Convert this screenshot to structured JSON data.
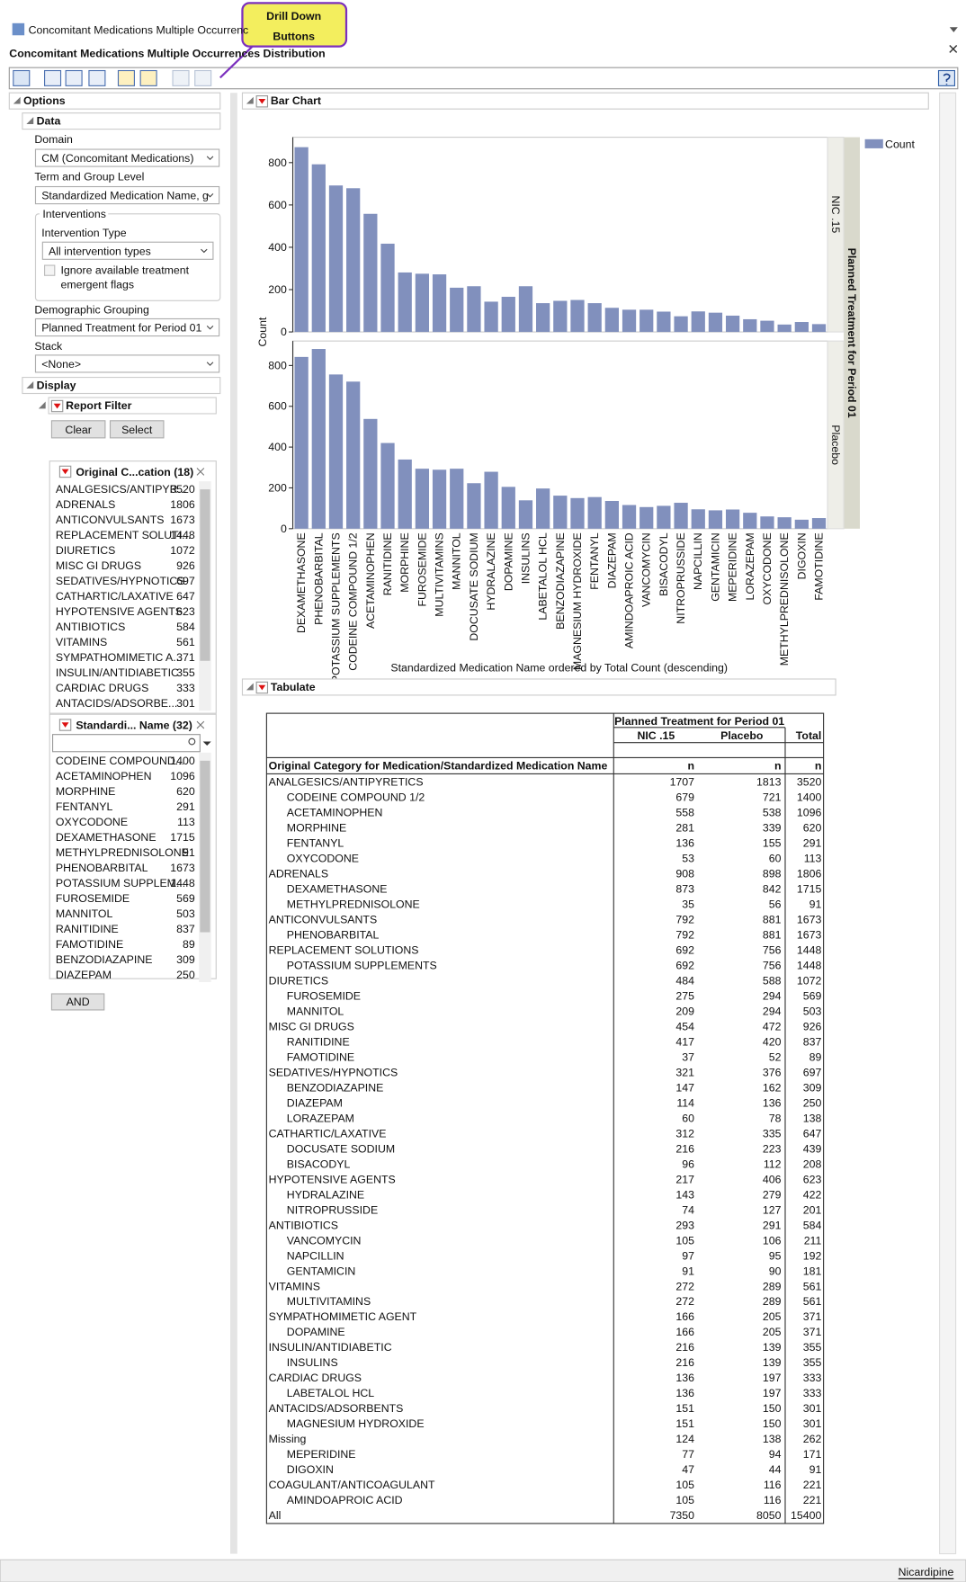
{
  "window_title": "Concomitant Medications Multiple Occurrenc",
  "title": "Concomitant Medications Multiple Occurrences Distribution",
  "annotation": [
    "Drill Down",
    "Buttons"
  ],
  "options": {
    "header": "Options",
    "data": {
      "header": "Data",
      "domain_label": "Domain",
      "domain": "CM (Concomitant Medications)",
      "term_label": "Term and Group Level",
      "term": "Standardized Medication Name, g",
      "interventions": {
        "header": "Interventions",
        "type_label": "Intervention Type",
        "type": "All intervention types",
        "ignore_flags": [
          "Ignore available treatment",
          "emergent flags"
        ]
      },
      "demographic_label": "Demographic Grouping",
      "demographic": "Planned Treatment for Period 01",
      "stack_label": "Stack",
      "stack": "<None>"
    },
    "display": {
      "header": "Display",
      "report_filter": "Report Filter",
      "buttons": [
        "Clear",
        "Select"
      ],
      "filters": [
        {
          "title": "Original C...cation (18)",
          "items": [
            {
              "label": "ANALGESICS/ANTIPYR...",
              "count": 3520
            },
            {
              "label": "ADRENALS",
              "count": 1806
            },
            {
              "label": "ANTICONVULSANTS",
              "count": 1673
            },
            {
              "label": "REPLACEMENT SOLUTI...",
              "count": 1448
            },
            {
              "label": "DIURETICS",
              "count": 1072
            },
            {
              "label": "MISC GI DRUGS",
              "count": 926
            },
            {
              "label": "SEDATIVES/HYPNOTICS",
              "count": 697
            },
            {
              "label": "CATHARTIC/LAXATIVE",
              "count": 647
            },
            {
              "label": "HYPOTENSIVE AGENTS",
              "count": 623
            },
            {
              "label": "ANTIBIOTICS",
              "count": 584
            },
            {
              "label": "VITAMINS",
              "count": 561
            },
            {
              "label": "SYMPATHOMIMETIC A...",
              "count": 371
            },
            {
              "label": "INSULIN/ANTIDIABETIC",
              "count": 355
            },
            {
              "label": "CARDIAC DRUGS",
              "count": 333
            },
            {
              "label": "ANTACIDS/ADSORBE...",
              "count": 301
            }
          ]
        },
        {
          "title": "Standardi... Name (32)",
          "items": [
            {
              "label": "CODEINE COMPOUND...",
              "count": 1400
            },
            {
              "label": "ACETAMINOPHEN",
              "count": 1096
            },
            {
              "label": "MORPHINE",
              "count": 620
            },
            {
              "label": "FENTANYL",
              "count": 291
            },
            {
              "label": "OXYCODONE",
              "count": 113
            },
            {
              "label": "DEXAMETHASONE",
              "count": 1715
            },
            {
              "label": "METHYLPREDNISOLONE",
              "count": 91
            },
            {
              "label": "PHENOBARBITAL",
              "count": 1673
            },
            {
              "label": "POTASSIUM SUPPLEM...",
              "count": 1448
            },
            {
              "label": "FUROSEMIDE",
              "count": 569
            },
            {
              "label": "MANNITOL",
              "count": 503
            },
            {
              "label": "RANITIDINE",
              "count": 837
            },
            {
              "label": "FAMOTIDINE",
              "count": 89
            },
            {
              "label": "BENZODIAZAPINE",
              "count": 309
            },
            {
              "label": "DIAZEPAM",
              "count": 250
            }
          ]
        }
      ],
      "combine": "AND"
    }
  },
  "chart_data": {
    "type": "bar",
    "section": "Bar Chart",
    "x_label": "Standardized Medication Name ordered by Total Count (descending)",
    "y_label": "Count",
    "legend": "Count",
    "panel_label": "Planned Treatment for Period 01",
    "categories": [
      "DEXAMETHASONE",
      "PHENOBARBITAL",
      "POTASSIUM SUPPLEMENTS",
      "CODEINE COMPOUND 1/2",
      "ACETAMINOPHEN",
      "RANITIDINE",
      "MORPHINE",
      "FUROSEMIDE",
      "MULTIVITAMINS",
      "MANNITOL",
      "DOCUSATE SODIUM",
      "HYDRALAZINE",
      "DOPAMINE",
      "INSULINS",
      "LABETALOL HCL",
      "BENZODIAZAPINE",
      "MAGNESIUM HYDROXIDE",
      "FENTANYL",
      "DIAZEPAM",
      "AMINDOAPROIC ACID",
      "VANCOMYCIN",
      "BISACODYL",
      "NITROPRUSSIDE",
      "NAPCILLIN",
      "GENTAMICIN",
      "MEPERIDINE",
      "LORAZEPAM",
      "OXYCODONE",
      "METHYLPREDNISOLONE",
      "DIGOXIN",
      "FAMOTIDINE"
    ],
    "series": [
      {
        "name": "NIC .15",
        "color": "#8190bd",
        "values": [
          873,
          792,
          692,
          679,
          558,
          417,
          281,
          275,
          272,
          209,
          216,
          143,
          166,
          216,
          136,
          147,
          151,
          136,
          114,
          105,
          105,
          96,
          74,
          97,
          91,
          77,
          60,
          53,
          35,
          47,
          37
        ]
      },
      {
        "name": "Placebo",
        "color": "#8190bd",
        "values": [
          842,
          881,
          756,
          721,
          538,
          420,
          339,
          294,
          289,
          294,
          223,
          279,
          205,
          139,
          197,
          162,
          150,
          155,
          136,
          116,
          106,
          112,
          127,
          95,
          90,
          94,
          78,
          60,
          56,
          44,
          52
        ]
      }
    ],
    "ylim": [
      0,
      920
    ],
    "yticks": [
      0,
      200,
      400,
      600,
      800
    ]
  },
  "tabulate": {
    "section": "Tabulate",
    "header_group": "Planned Treatment for Period 01",
    "columns": [
      "NIC .15",
      "Placebo",
      "Total"
    ],
    "row_header": "Original Category for Medication/Standardized Medication Name",
    "stats": [
      "n",
      "n",
      "n"
    ],
    "groups": [
      {
        "label": "ANALGESICS/ANTIPYRETICS",
        "values": [
          1707,
          1813,
          3520
        ],
        "items": [
          {
            "label": "CODEINE COMPOUND 1/2",
            "values": [
              679,
              721,
              1400
            ]
          },
          {
            "label": "ACETAMINOPHEN",
            "values": [
              558,
              538,
              1096
            ]
          },
          {
            "label": "MORPHINE",
            "values": [
              281,
              339,
              620
            ]
          },
          {
            "label": "FENTANYL",
            "values": [
              136,
              155,
              291
            ]
          },
          {
            "label": "OXYCODONE",
            "values": [
              53,
              60,
              113
            ]
          }
        ]
      },
      {
        "label": "ADRENALS",
        "values": [
          908,
          898,
          1806
        ],
        "items": [
          {
            "label": "DEXAMETHASONE",
            "values": [
              873,
              842,
              1715
            ]
          },
          {
            "label": "METHYLPREDNISOLONE",
            "values": [
              35,
              56,
              91
            ]
          }
        ]
      },
      {
        "label": "ANTICONVULSANTS",
        "values": [
          792,
          881,
          1673
        ],
        "items": [
          {
            "label": "PHENOBARBITAL",
            "values": [
              792,
              881,
              1673
            ]
          }
        ]
      },
      {
        "label": "REPLACEMENT SOLUTIONS",
        "values": [
          692,
          756,
          1448
        ],
        "items": [
          {
            "label": "POTASSIUM SUPPLEMENTS",
            "values": [
              692,
              756,
              1448
            ]
          }
        ]
      },
      {
        "label": "DIURETICS",
        "values": [
          484,
          588,
          1072
        ],
        "items": [
          {
            "label": "FUROSEMIDE",
            "values": [
              275,
              294,
              569
            ]
          },
          {
            "label": "MANNITOL",
            "values": [
              209,
              294,
              503
            ]
          }
        ]
      },
      {
        "label": "MISC GI DRUGS",
        "values": [
          454,
          472,
          926
        ],
        "items": [
          {
            "label": "RANITIDINE",
            "values": [
              417,
              420,
              837
            ]
          },
          {
            "label": "FAMOTIDINE",
            "values": [
              37,
              52,
              89
            ]
          }
        ]
      },
      {
        "label": "SEDATIVES/HYPNOTICS",
        "values": [
          321,
          376,
          697
        ],
        "items": [
          {
            "label": "BENZODIAZAPINE",
            "values": [
              147,
              162,
              309
            ]
          },
          {
            "label": "DIAZEPAM",
            "values": [
              114,
              136,
              250
            ]
          },
          {
            "label": "LORAZEPAM",
            "values": [
              60,
              78,
              138
            ]
          }
        ]
      },
      {
        "label": "CATHARTIC/LAXATIVE",
        "values": [
          312,
          335,
          647
        ],
        "items": [
          {
            "label": "DOCUSATE SODIUM",
            "values": [
              216,
              223,
              439
            ]
          },
          {
            "label": "BISACODYL",
            "values": [
              96,
              112,
              208
            ]
          }
        ]
      },
      {
        "label": "HYPOTENSIVE AGENTS",
        "values": [
          217,
          406,
          623
        ],
        "items": [
          {
            "label": "HYDRALAZINE",
            "values": [
              143,
              279,
              422
            ]
          },
          {
            "label": "NITROPRUSSIDE",
            "values": [
              74,
              127,
              201
            ]
          }
        ]
      },
      {
        "label": "ANTIBIOTICS",
        "values": [
          293,
          291,
          584
        ],
        "items": [
          {
            "label": "VANCOMYCIN",
            "values": [
              105,
              106,
              211
            ]
          },
          {
            "label": "NAPCILLIN",
            "values": [
              97,
              95,
              192
            ]
          },
          {
            "label": "GENTAMICIN",
            "values": [
              91,
              90,
              181
            ]
          }
        ]
      },
      {
        "label": "VITAMINS",
        "values": [
          272,
          289,
          561
        ],
        "items": [
          {
            "label": "MULTIVITAMINS",
            "values": [
              272,
              289,
              561
            ]
          }
        ]
      },
      {
        "label": "SYMPATHOMIMETIC AGENT",
        "values": [
          166,
          205,
          371
        ],
        "items": [
          {
            "label": "DOPAMINE",
            "values": [
              166,
              205,
              371
            ]
          }
        ]
      },
      {
        "label": "INSULIN/ANTIDIABETIC",
        "values": [
          216,
          139,
          355
        ],
        "items": [
          {
            "label": "INSULINS",
            "values": [
              216,
              139,
              355
            ]
          }
        ]
      },
      {
        "label": "CARDIAC DRUGS",
        "values": [
          136,
          197,
          333
        ],
        "items": [
          {
            "label": "LABETALOL HCL",
            "values": [
              136,
              197,
              333
            ]
          }
        ]
      },
      {
        "label": "ANTACIDS/ADSORBENTS",
        "values": [
          151,
          150,
          301
        ],
        "items": [
          {
            "label": "MAGNESIUM HYDROXIDE",
            "values": [
              151,
              150,
              301
            ]
          }
        ]
      },
      {
        "label": "Missing",
        "values": [
          124,
          138,
          262
        ],
        "items": [
          {
            "label": "MEPERIDINE",
            "values": [
              77,
              94,
              171
            ]
          },
          {
            "label": "DIGOXIN",
            "values": [
              47,
              44,
              91
            ]
          }
        ]
      },
      {
        "label": "COAGULANT/ANTICOAGULANT",
        "values": [
          105,
          116,
          221
        ],
        "items": [
          {
            "label": "AMINDOAPROIC ACID",
            "values": [
              105,
              116,
              221
            ]
          }
        ]
      }
    ],
    "all": {
      "label": "All",
      "values": [
        7350,
        8050,
        15400
      ]
    }
  },
  "status": "Nicardipine"
}
